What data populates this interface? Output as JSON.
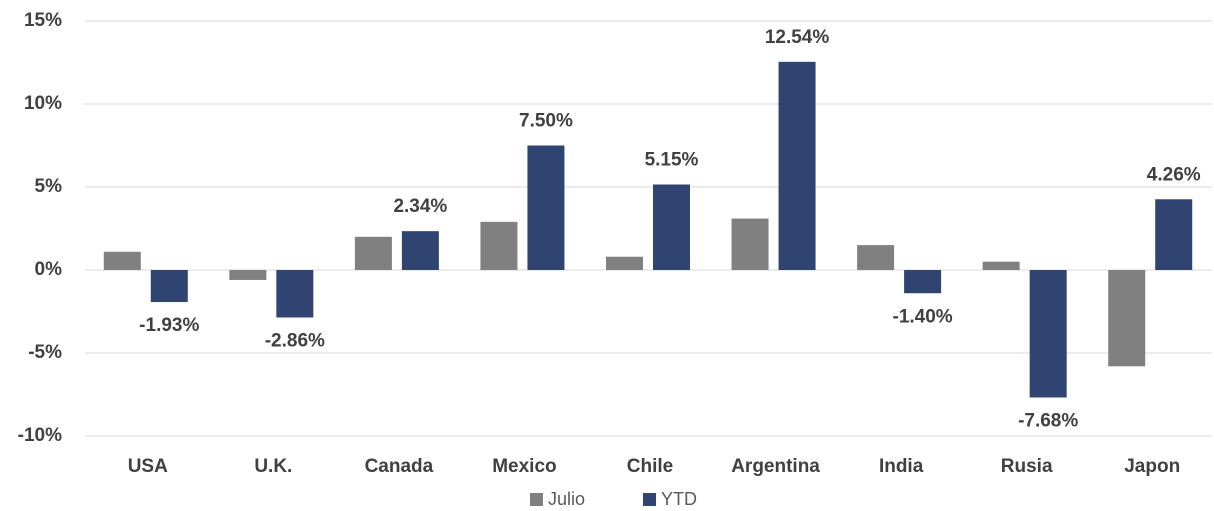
{
  "chart_data": {
    "type": "bar",
    "categories": [
      "USA",
      "U.K.",
      "Canada",
      "Mexico",
      "Chile",
      "Argentina",
      "India",
      "Rusia",
      "Japon"
    ],
    "series": [
      {
        "name": "Julio",
        "color": "#808080",
        "values": [
          1.1,
          -0.6,
          2.0,
          2.9,
          0.8,
          3.1,
          1.5,
          0.5,
          -5.8
        ]
      },
      {
        "name": "YTD",
        "color": "#2f4471",
        "values": [
          -1.93,
          -2.86,
          2.34,
          7.5,
          5.15,
          12.54,
          -1.4,
          -7.68,
          4.26
        ],
        "value_labels": [
          "-1.93%",
          "-2.86%",
          "2.34%",
          "7.50%",
          "5.15%",
          "12.54%",
          "-1.40%",
          "-7.68%",
          "4.26%"
        ]
      }
    ],
    "ylim": [
      -10,
      15
    ],
    "yticks": [
      {
        "value": -10,
        "label": "-10%"
      },
      {
        "value": -5,
        "label": "-5%"
      },
      {
        "value": 0,
        "label": "0%"
      },
      {
        "value": 5,
        "label": "5%"
      },
      {
        "value": 10,
        "label": "10%"
      },
      {
        "value": 15,
        "label": "15%"
      }
    ],
    "grid": true,
    "legend": "bottom"
  }
}
